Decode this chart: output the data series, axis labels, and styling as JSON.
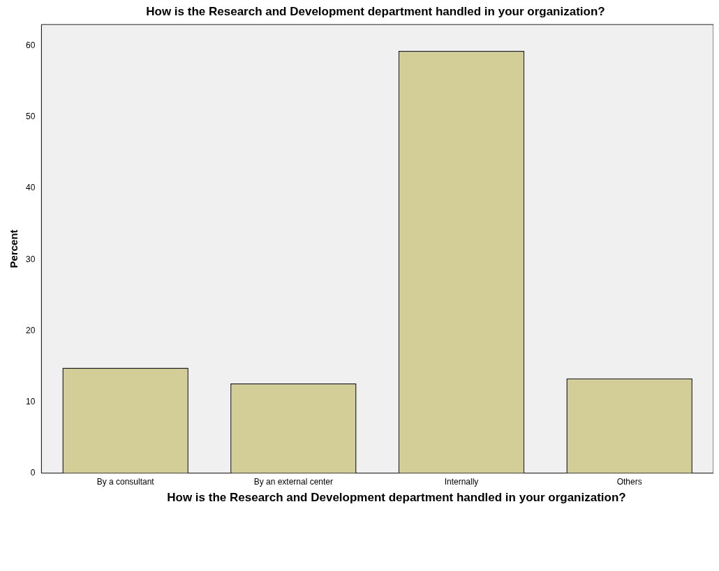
{
  "chart_data": {
    "type": "bar",
    "title": "How is the Research and Development department handled in your organization?",
    "xlabel": "How is the Research and Development department handled in your organization?",
    "ylabel": "Percent",
    "categories": [
      "By a consultant",
      "By an external center",
      "Internally",
      "Others"
    ],
    "values": [
      14.8,
      12.6,
      59.3,
      13.3
    ],
    "color": "#d3ce97",
    "ylim": [
      0,
      63
    ],
    "yticks": [
      0,
      10,
      20,
      30,
      40,
      50,
      60
    ],
    "grid": false,
    "legend": false
  }
}
